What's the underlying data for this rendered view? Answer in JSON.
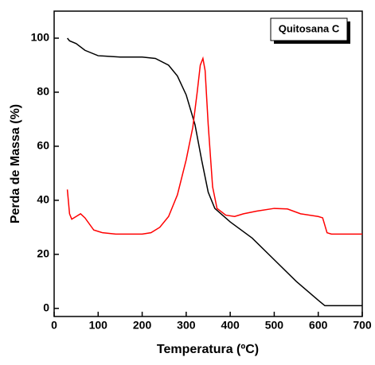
{
  "chart_data": {
    "type": "line",
    "x_label": "Temperatura (ºC)",
    "y_label": "Perda de Massa (%)",
    "annotation": "Quitosana C",
    "xlim": [
      0,
      700
    ],
    "xticks": [
      0,
      100,
      200,
      300,
      400,
      500,
      600,
      700
    ],
    "ylim": [
      -3,
      110
    ],
    "yticks": [
      0,
      20,
      40,
      60,
      80,
      100
    ],
    "series": [
      {
        "color": "#000000",
        "x": [
          30,
          35,
          50,
          70,
          100,
          150,
          200,
          230,
          260,
          280,
          300,
          320,
          335,
          350,
          365,
          400,
          450,
          500,
          550,
          600,
          615,
          650,
          700
        ],
        "values": [
          100,
          99,
          98,
          95.5,
          93.5,
          93,
          93,
          92.5,
          90,
          86,
          79,
          68,
          55,
          43,
          37,
          32,
          26,
          18,
          10,
          3,
          1,
          1,
          1
        ]
      },
      {
        "color": "#ff0000",
        "x": [
          30,
          35,
          40,
          50,
          60,
          70,
          90,
          110,
          140,
          200,
          220,
          240,
          260,
          280,
          300,
          315,
          325,
          332,
          338,
          343,
          350,
          360,
          370,
          390,
          410,
          430,
          460,
          500,
          530,
          560,
          600,
          610,
          620,
          630,
          700
        ],
        "values": [
          44,
          35,
          33,
          34,
          35,
          33.5,
          29,
          28,
          27.5,
          27.5,
          28,
          30,
          34,
          42,
          55,
          67,
          80,
          90,
          92.5,
          88,
          68,
          45,
          37,
          34.5,
          34,
          35,
          36,
          37,
          36.8,
          35,
          34,
          33.5,
          28,
          27.5,
          27.5
        ]
      }
    ]
  }
}
